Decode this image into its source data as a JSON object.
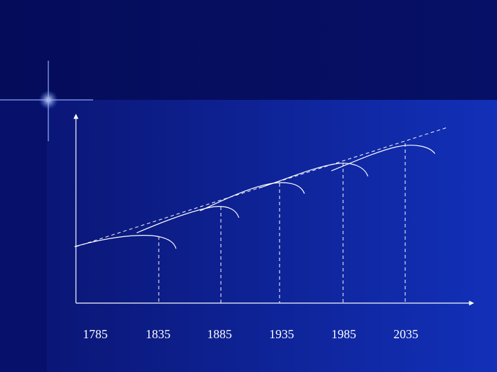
{
  "x_axis": {
    "labels": [
      "1785",
      "1835",
      "1885",
      "1935",
      "1985",
      "2035"
    ]
  }
}
